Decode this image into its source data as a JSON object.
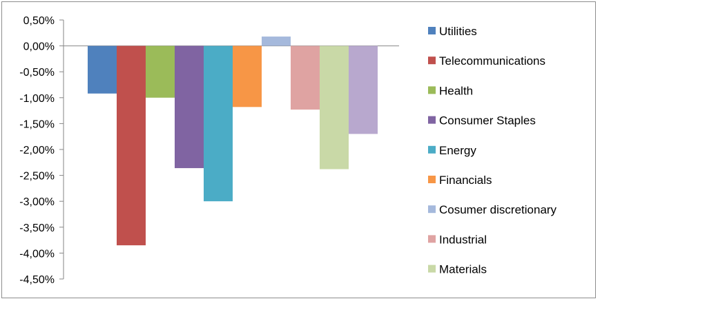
{
  "chart_data": {
    "type": "bar",
    "title": "",
    "xlabel": "",
    "ylabel": "",
    "ylim": [
      -4.5,
      0.5
    ],
    "ytick_step": 0.5,
    "ytick_labels": [
      "0,50%",
      "0,00%",
      "-0,50%",
      "-1,00%",
      "-1,50%",
      "-2,00%",
      "-2,50%",
      "-3,00%",
      "-3,50%",
      "-4,00%",
      "-4,50%"
    ],
    "grid": false,
    "legend_position": "right",
    "series": [
      {
        "name": "Utilities",
        "value": -0.92,
        "color": "#4F81BD"
      },
      {
        "name": "Telecommunications",
        "value": -3.85,
        "color": "#C0504D"
      },
      {
        "name": "Health",
        "value": -1.0,
        "color": "#9BBB59"
      },
      {
        "name": "Consumer Staples",
        "value": -2.36,
        "color": "#8064A2"
      },
      {
        "name": "Energy",
        "value": -3.0,
        "color": "#4BACC6"
      },
      {
        "name": "Financials",
        "value": -1.18,
        "color": "#F79646"
      },
      {
        "name": "Cosumer discretionary",
        "value": 0.18,
        "color": "#A5B9DC"
      },
      {
        "name": "Industrial",
        "value": -1.23,
        "color": "#DFA3A2"
      },
      {
        "name": "Materials",
        "value": -2.38,
        "color": "#C9D9A7"
      },
      {
        "name": "",
        "value": -1.7,
        "color": "#B8A8CE"
      }
    ]
  }
}
